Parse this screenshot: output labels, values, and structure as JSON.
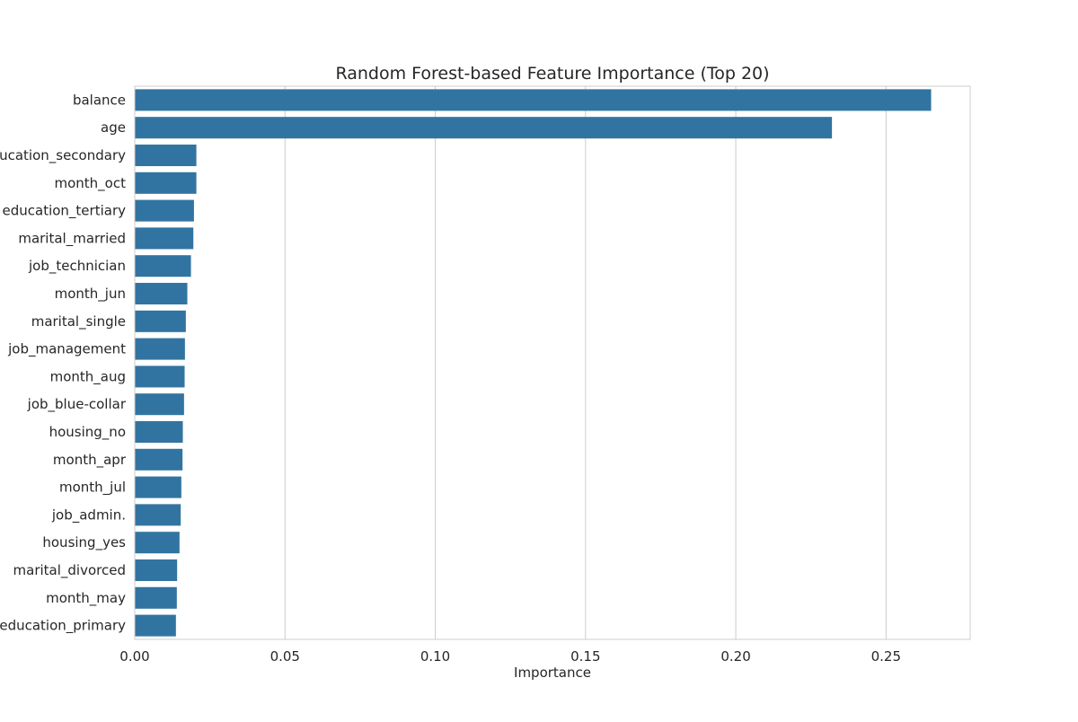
{
  "chart_data": {
    "type": "bar",
    "orientation": "horizontal",
    "title": "Random Forest-based Feature Importance (Top 20)",
    "xlabel": "Importance",
    "ylabel": "",
    "xlim": [
      0,
      0.278
    ],
    "x_ticks": [
      0.0,
      0.05,
      0.1,
      0.15,
      0.2,
      0.25
    ],
    "x_tick_labels": [
      "0.00",
      "0.05",
      "0.10",
      "0.15",
      "0.20",
      "0.25"
    ],
    "grid": "x",
    "bar_color": "#3274a1",
    "categories": [
      "balance",
      "age",
      "education_secondary",
      "month_oct",
      "education_tertiary",
      "marital_married",
      "job_technician",
      "month_jun",
      "marital_single",
      "job_management",
      "month_aug",
      "job_blue-collar",
      "housing_no",
      "month_apr",
      "month_jul",
      "job_admin.",
      "housing_yes",
      "marital_divorced",
      "month_may",
      "education_primary"
    ],
    "values": [
      0.265,
      0.232,
      0.0205,
      0.0205,
      0.0197,
      0.0195,
      0.0187,
      0.0175,
      0.017,
      0.0167,
      0.0166,
      0.0164,
      0.016,
      0.0159,
      0.0155,
      0.0153,
      0.0149,
      0.0141,
      0.014,
      0.0137
    ]
  }
}
